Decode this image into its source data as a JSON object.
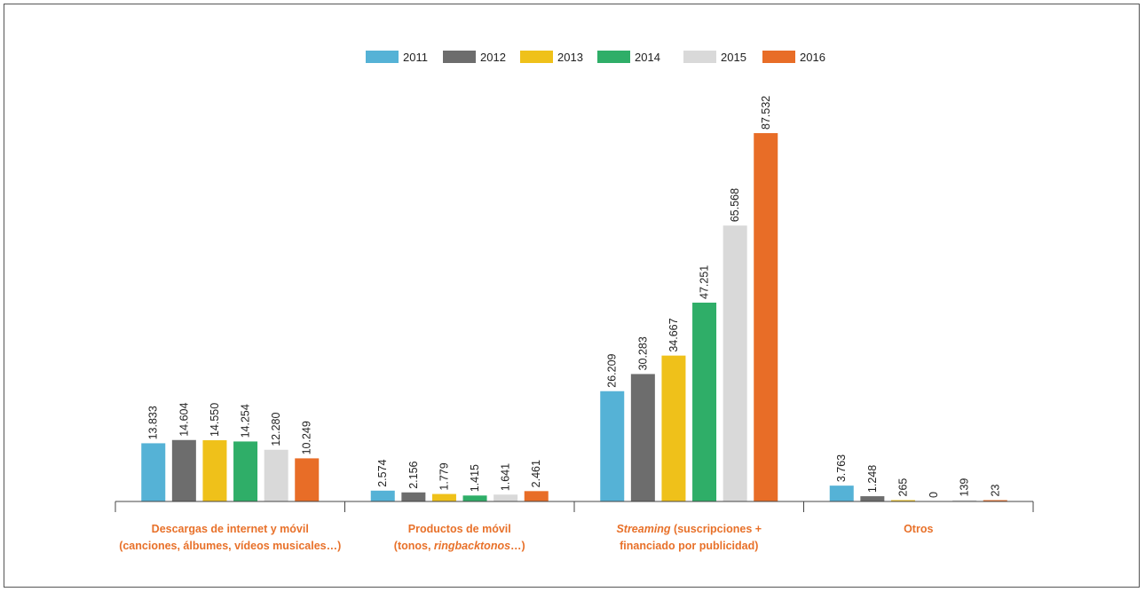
{
  "chart_data": {
    "type": "bar",
    "categories": [
      [
        "Descargas de internet y móvil",
        "(canciones, álbumes, vídeos musicales…)"
      ],
      [
        "Productos de móvil",
        "(tonos, ringbacktonos…)"
      ],
      [
        "Streaming (suscripciones +",
        "financiado por publicidad)"
      ],
      [
        "Otros"
      ]
    ],
    "series": [
      {
        "name": "2011",
        "color": "#55b2d6",
        "values": [
          13833,
          2574,
          26209,
          3763
        ],
        "labels": [
          "13.833",
          "2.574",
          "26.209",
          "3.763"
        ]
      },
      {
        "name": "2012",
        "color": "#6d6d6d",
        "values": [
          14604,
          2156,
          30283,
          1248
        ],
        "labels": [
          "14.604",
          "2.156",
          "30.283",
          "1.248"
        ]
      },
      {
        "name": "2013",
        "color": "#efc11a",
        "values": [
          14550,
          1779,
          34667,
          265
        ],
        "labels": [
          "14.550",
          "1.779",
          "34.667",
          "265"
        ]
      },
      {
        "name": "2014",
        "color": "#2fae68",
        "values": [
          14254,
          1415,
          47251,
          0
        ],
        "labels": [
          "14.254",
          "1.415",
          "47.251",
          "0"
        ]
      },
      {
        "name": "2015",
        "color": "#d9d9d9",
        "values": [
          12280,
          1641,
          65568,
          139
        ],
        "labels": [
          "12.280",
          "1.641",
          "65.568",
          "139"
        ]
      },
      {
        "name": "2016",
        "color": "#e86d27",
        "values": [
          10249,
          2461,
          87532,
          23
        ],
        "labels": [
          "10.249",
          "2.461",
          "87.532",
          "23"
        ]
      }
    ],
    "title": "",
    "xlabel": "",
    "ylabel": "",
    "ylim": [
      0,
      87532
    ],
    "grid": false,
    "legend": "top-center",
    "category_label_color": "#e8712a"
  }
}
